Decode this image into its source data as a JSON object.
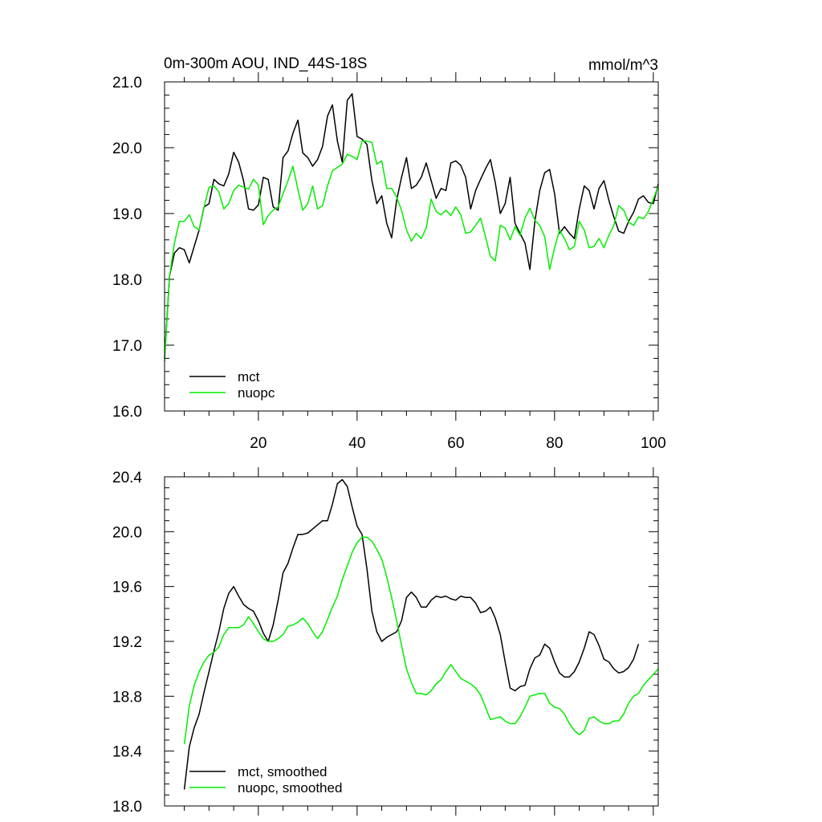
{
  "figure": {
    "title_left": "0m-300m AOU, IND_44S-18S",
    "title_right": "mmol/m^3"
  },
  "chart_data": [
    {
      "type": "line",
      "name": "raw",
      "xlim": [
        1,
        101
      ],
      "ylim": [
        16.0,
        21.0
      ],
      "x_ticks": [
        20,
        40,
        60,
        80,
        100
      ],
      "x_tick_labels": [
        "20",
        "40",
        "60",
        "80",
        "100"
      ],
      "y_ticks": [
        16.0,
        17.0,
        18.0,
        19.0,
        20.0,
        21.0
      ],
      "y_tick_labels": [
        "16.0",
        "17.0",
        "18.0",
        "19.0",
        "20.0",
        "21.0"
      ],
      "legend_position": "bottom-left",
      "x_start": 1,
      "series": [
        {
          "name": "mct",
          "color": "#000000",
          "values": [
            16.8,
            18.05,
            18.4,
            18.48,
            18.45,
            18.25,
            18.5,
            18.75,
            19.1,
            19.15,
            19.52,
            19.45,
            19.42,
            19.6,
            19.93,
            19.78,
            19.5,
            19.07,
            19.05,
            19.13,
            19.55,
            19.52,
            19.1,
            19.05,
            19.85,
            19.95,
            20.22,
            20.42,
            19.92,
            19.85,
            19.72,
            19.82,
            20.02,
            20.48,
            20.65,
            20.1,
            19.78,
            20.72,
            20.82,
            20.17,
            20.13,
            20.05,
            19.5,
            19.15,
            19.27,
            18.85,
            18.63,
            19.2,
            19.55,
            19.85,
            19.38,
            19.43,
            19.55,
            19.77,
            19.5,
            19.23,
            19.38,
            19.35,
            19.77,
            19.8,
            19.73,
            19.55,
            19.07,
            19.35,
            19.52,
            19.68,
            19.82,
            19.47,
            19.0,
            19.15,
            19.55,
            18.85,
            18.7,
            18.55,
            18.15,
            18.88,
            19.35,
            19.62,
            19.67,
            19.3,
            18.7,
            18.8,
            18.7,
            18.62,
            19.07,
            19.42,
            19.35,
            19.07,
            19.38,
            19.5,
            19.2,
            18.95,
            18.73,
            18.7,
            18.88,
            19.02,
            19.22,
            19.27,
            19.17,
            19.15,
            19.45
          ]
        },
        {
          "name": "nuopc",
          "color": "#00ee00",
          "values": [
            16.75,
            18.05,
            18.55,
            18.88,
            18.88,
            18.98,
            18.8,
            18.75,
            19.1,
            19.4,
            19.42,
            19.33,
            19.07,
            19.15,
            19.35,
            19.43,
            19.4,
            19.37,
            19.52,
            19.43,
            18.83,
            18.97,
            19.05,
            19.1,
            19.3,
            19.5,
            19.72,
            19.37,
            19.05,
            19.15,
            19.42,
            19.07,
            19.12,
            19.42,
            19.65,
            19.7,
            19.75,
            19.9,
            19.87,
            19.82,
            20.1,
            20.1,
            20.08,
            19.75,
            19.8,
            19.38,
            19.38,
            19.25,
            19.05,
            18.75,
            18.58,
            18.7,
            18.62,
            18.78,
            19.22,
            19.03,
            18.98,
            19.05,
            18.97,
            19.1,
            18.98,
            18.7,
            18.72,
            18.82,
            18.93,
            18.65,
            18.35,
            18.28,
            18.82,
            18.78,
            18.6,
            18.8,
            18.67,
            18.93,
            19.08,
            18.9,
            18.82,
            18.65,
            18.15,
            18.48,
            18.75,
            18.62,
            18.45,
            18.5,
            18.88,
            18.75,
            18.48,
            18.5,
            18.62,
            18.48,
            18.67,
            18.82,
            19.12,
            19.05,
            18.87,
            18.82,
            18.95,
            18.92,
            19.03,
            19.22,
            19.42
          ]
        }
      ]
    },
    {
      "type": "line",
      "name": "smoothed",
      "xlim": [
        1,
        101
      ],
      "ylim": [
        18.0,
        20.4
      ],
      "x_ticks": [
        20,
        40,
        60,
        80,
        100
      ],
      "x_tick_labels": [],
      "y_ticks": [
        18.0,
        18.4,
        18.8,
        19.2,
        19.6,
        20.0,
        20.4
      ],
      "y_tick_labels": [
        "18.0",
        "18.4",
        "18.8",
        "19.2",
        "19.6",
        "20.0",
        "20.4"
      ],
      "legend_position": "bottom-left",
      "x_start": 5,
      "series": [
        {
          "name": "mct, smoothed",
          "color": "#000000",
          "values": [
            18.12,
            18.43,
            18.57,
            18.67,
            18.83,
            18.98,
            19.13,
            19.27,
            19.44,
            19.55,
            19.6,
            19.53,
            19.47,
            19.44,
            19.42,
            19.35,
            19.26,
            19.2,
            19.32,
            19.5,
            19.7,
            19.77,
            19.88,
            19.98,
            19.98,
            19.99,
            20.02,
            20.05,
            20.08,
            20.08,
            20.2,
            20.35,
            20.38,
            20.33,
            20.18,
            20.04,
            19.98,
            19.73,
            19.42,
            19.27,
            19.2,
            19.23,
            19.25,
            19.27,
            19.35,
            19.52,
            19.56,
            19.52,
            19.45,
            19.45,
            19.5,
            19.53,
            19.52,
            19.53,
            19.51,
            19.5,
            19.53,
            19.52,
            19.52,
            19.48,
            19.41,
            19.42,
            19.45,
            19.37,
            19.25,
            19.05,
            18.86,
            18.84,
            18.87,
            18.88,
            19.0,
            19.08,
            19.1,
            19.18,
            19.15,
            19.05,
            18.97,
            18.94,
            18.94,
            18.98,
            19.05,
            19.15,
            19.27,
            19.25,
            19.17,
            19.07,
            19.05,
            19.0,
            18.97,
            18.98,
            19.01,
            19.07,
            19.18
          ]
        },
        {
          "name": "nuopc, smoothed",
          "color": "#00ee00",
          "values": [
            18.45,
            18.73,
            18.88,
            18.98,
            19.05,
            19.1,
            19.12,
            19.16,
            19.25,
            19.3,
            19.3,
            19.3,
            19.32,
            19.38,
            19.33,
            19.27,
            19.22,
            19.2,
            19.2,
            19.22,
            19.25,
            19.31,
            19.32,
            19.34,
            19.37,
            19.33,
            19.27,
            19.22,
            19.27,
            19.36,
            19.45,
            19.53,
            19.65,
            19.75,
            19.85,
            19.92,
            19.96,
            19.96,
            19.93,
            19.87,
            19.8,
            19.67,
            19.52,
            19.35,
            19.17,
            19.0,
            18.9,
            18.82,
            18.82,
            18.81,
            18.84,
            18.89,
            18.92,
            18.98,
            19.03,
            18.98,
            18.93,
            18.91,
            18.89,
            18.86,
            18.81,
            18.72,
            18.63,
            18.64,
            18.65,
            18.62,
            18.6,
            18.6,
            18.65,
            18.72,
            18.8,
            18.81,
            18.82,
            18.82,
            18.75,
            18.72,
            18.71,
            18.67,
            18.6,
            18.55,
            18.52,
            18.55,
            18.64,
            18.65,
            18.62,
            18.6,
            18.6,
            18.62,
            18.62,
            18.67,
            18.75,
            18.8,
            18.82,
            18.88,
            18.92,
            18.96,
            19.0
          ]
        }
      ]
    }
  ]
}
